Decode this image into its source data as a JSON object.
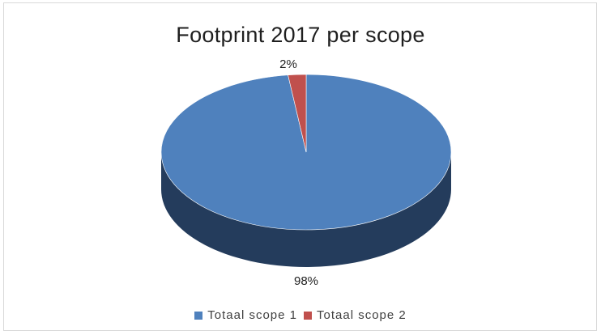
{
  "chart_data": {
    "type": "pie",
    "title": "Footprint 2017 per scope",
    "series": [
      {
        "categories": [
          "Totaal scope 1",
          "Totaal scope 2"
        ],
        "values": [
          98,
          2
        ],
        "labels": [
          "98%",
          "2%"
        ],
        "colors": [
          "#4f81bd",
          "#c0504d"
        ],
        "side_colors": [
          "#243c5c",
          "#6e2524"
        ]
      }
    ],
    "legend": {
      "position": "bottom",
      "items": [
        {
          "label": "Totaal scope 1",
          "color": "#4f81bd"
        },
        {
          "label": "Totaal scope 2",
          "color": "#c0504d"
        }
      ]
    },
    "style": "3d"
  }
}
